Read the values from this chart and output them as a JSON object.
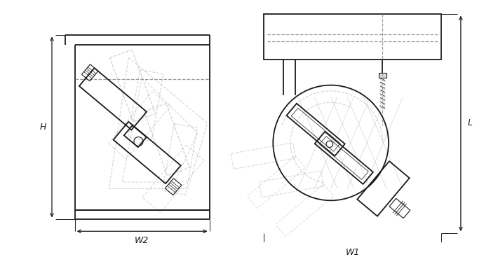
{
  "line_color": "#1a1a1a",
  "dash_color": "#999999",
  "ghost_color": "#aaaaaa",
  "fig_width": 7.0,
  "fig_height": 3.67,
  "dpi": 100,
  "lw_main": 1.3,
  "lw_thin": 0.8,
  "lw_dash": 0.9,
  "lw_ghost": 0.8,
  "labels": {
    "H": "H",
    "W2": "W2",
    "L": "L",
    "W1": "W1"
  }
}
